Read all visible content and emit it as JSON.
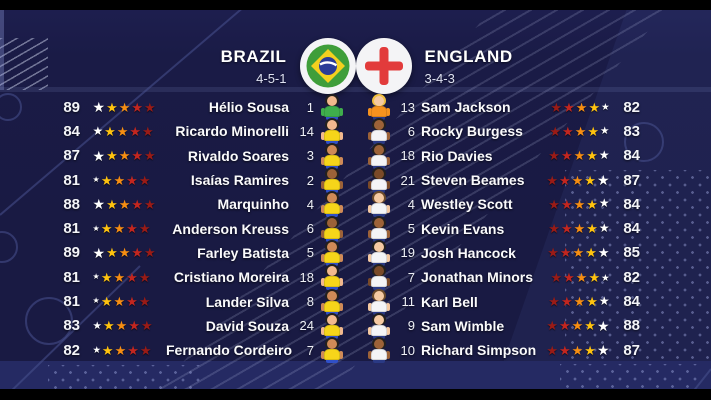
{
  "teams": {
    "home": {
      "name": "BRAZIL",
      "formation": "4-5-1",
      "flag": "brazil-flag",
      "kit": {
        "shirt": "#f6d51a",
        "gk_shirt": "#3fae4c",
        "shorts": "#3050c8"
      }
    },
    "away": {
      "name": "ENGLAND",
      "formation": "3-4-3",
      "flag": "england-flag",
      "kit": {
        "shirt": "#f4f4f6",
        "gk_shirt": "#f6921e",
        "shorts": "#2a3a85"
      }
    }
  },
  "players": {
    "home": [
      {
        "rating": 89,
        "name": "Hélio Sousa",
        "number": 1,
        "gk": true,
        "skin": "#f2b98e",
        "hair": "#23201e"
      },
      {
        "rating": 84,
        "name": "Ricardo Minorelli",
        "number": 14,
        "gk": false,
        "skin": "#f2b98e",
        "hair": "#23201e"
      },
      {
        "rating": 87,
        "name": "Rivaldo Soares",
        "number": 3,
        "gk": false,
        "skin": "#cf8a57",
        "hair": "#23201e"
      },
      {
        "rating": 81,
        "name": "Isaías Ramires",
        "number": 2,
        "gk": false,
        "skin": "#9c6238",
        "hair": "#23201e"
      },
      {
        "rating": 88,
        "name": "Marquinho",
        "number": 4,
        "gk": false,
        "skin": "#cf8a57",
        "hair": "#23201e"
      },
      {
        "rating": 81,
        "name": "Anderson Kreuss",
        "number": 6,
        "gk": false,
        "skin": "#9c6238",
        "hair": "#23201e"
      },
      {
        "rating": 89,
        "name": "Farley Batista",
        "number": 5,
        "gk": false,
        "skin": "#cf8a57",
        "hair": "#23201e"
      },
      {
        "rating": 81,
        "name": "Cristiano Moreira",
        "number": 18,
        "gk": false,
        "skin": "#f2b98e",
        "hair": "#23201e"
      },
      {
        "rating": 81,
        "name": "Lander Silva",
        "number": 8,
        "gk": false,
        "skin": "#cf8a57",
        "hair": "#23201e"
      },
      {
        "rating": 83,
        "name": "David Souza",
        "number": 24,
        "gk": false,
        "skin": "#f2b98e",
        "hair": "#23201e"
      },
      {
        "rating": 82,
        "name": "Fernando Cordeiro",
        "number": 7,
        "gk": false,
        "skin": "#cf8a57",
        "hair": "#23201e"
      }
    ],
    "away": [
      {
        "rating": 82,
        "name": "Sam Jackson",
        "number": 13,
        "gk": true,
        "skin": "#f5c9a2",
        "hair": "#f0c040"
      },
      {
        "rating": 83,
        "name": "Rocky Burgess",
        "number": 6,
        "gk": false,
        "skin": "#9c6238",
        "hair": "#23201e"
      },
      {
        "rating": 84,
        "name": "Rio Davies",
        "number": 18,
        "gk": false,
        "skin": "#9c6238",
        "hair": "#23201e"
      },
      {
        "rating": 87,
        "name": "Steven Beames",
        "number": 21,
        "gk": false,
        "skin": "#7a4a28",
        "hair": "#23201e"
      },
      {
        "rating": 84,
        "name": "Westley Scott",
        "number": 4,
        "gk": false,
        "skin": "#f5c9a2",
        "hair": "#6b4a2a"
      },
      {
        "rating": 84,
        "name": "Kevin Evans",
        "number": 5,
        "gk": false,
        "skin": "#9c6238",
        "hair": "#23201e"
      },
      {
        "rating": 85,
        "name": "Josh Hancock",
        "number": 19,
        "gk": false,
        "skin": "#f5c9a2",
        "hair": "#23201e"
      },
      {
        "rating": 82,
        "name": "Jonathan Minors",
        "number": 7,
        "gk": false,
        "skin": "#7a4a28",
        "hair": "#23201e"
      },
      {
        "rating": 84,
        "name": "Karl Bell",
        "number": 11,
        "gk": false,
        "skin": "#f5c9a2",
        "hair": "#6b4a2a"
      },
      {
        "rating": 88,
        "name": "Sam Wimble",
        "number": 9,
        "gk": false,
        "skin": "#f5c9a2",
        "hair": "#23201e"
      },
      {
        "rating": 87,
        "name": "Richard Simpson",
        "number": 10,
        "gk": false,
        "skin": "#9c6238",
        "hair": "#23201e"
      }
    ]
  },
  "stars": {
    "colors_from_score": [
      "#ffffff",
      "#ffc30f",
      "#f78e12",
      "#c3261f",
      "#9a1b16"
    ]
  },
  "colors": {
    "background": "#191a43",
    "bottom_band": "#252a63",
    "text": "#ffffff"
  }
}
